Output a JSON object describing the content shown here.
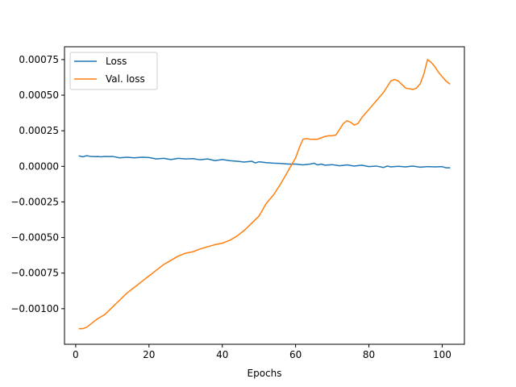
{
  "chart_data": {
    "type": "line",
    "title": "",
    "xlabel": "Epochs",
    "ylabel": "",
    "xlim": [
      -3.05,
      106.05
    ],
    "ylim": [
      -0.00125,
      0.00084
    ],
    "xticks": [
      0,
      20,
      40,
      60,
      80,
      100
    ],
    "xtick_labels": [
      "0",
      "20",
      "40",
      "60",
      "80",
      "100"
    ],
    "yticks": [
      -0.001,
      -0.00075,
      -0.0005,
      -0.00025,
      0,
      0.00025,
      0.0005,
      0.00075
    ],
    "ytick_labels": [
      "−0.00100",
      "−0.00075",
      "−0.00050",
      "−0.00025",
      "0.00000",
      "0.00025",
      "0.00050",
      "0.00075"
    ],
    "grid": false,
    "legend": "top-left",
    "series": [
      {
        "name": "Loss",
        "color": "#1f77b4",
        "x": [
          1,
          2,
          3,
          4,
          5,
          6,
          7,
          8,
          9,
          10,
          12,
          14,
          16,
          18,
          20,
          22,
          24,
          26,
          28,
          30,
          32,
          34,
          36,
          38,
          40,
          42,
          44,
          46,
          48,
          49,
          50,
          52,
          54,
          56,
          58,
          60,
          62,
          64,
          65,
          66,
          67,
          68,
          70,
          72,
          74,
          76,
          78,
          80,
          82,
          84,
          85,
          86,
          88,
          90,
          92,
          94,
          96,
          98,
          100,
          101,
          102
        ],
        "y": [
          7.3e-05,
          6.7e-05,
          7.5e-05,
          7e-05,
          6.8e-05,
          6.9e-05,
          6.7e-05,
          7e-05,
          6.8e-05,
          7e-05,
          6e-05,
          6.4e-05,
          6e-05,
          6.4e-05,
          6.2e-05,
          5.2e-05,
          5.6e-05,
          4.8e-05,
          5.6e-05,
          5.2e-05,
          5.4e-05,
          4.6e-05,
          5.2e-05,
          4e-05,
          4.8e-05,
          4e-05,
          3.6e-05,
          3e-05,
          3.6e-05,
          2.4e-05,
          3.2e-05,
          2.6e-05,
          2.2e-05,
          2e-05,
          1.6e-05,
          1.6e-05,
          1e-05,
          1.6e-05,
          2.2e-05,
          1e-05,
          1.6e-05,
          8e-06,
          1.2e-05,
          4e-06,
          1e-05,
          2e-06,
          8e-06,
          -2e-06,
          2e-06,
          -8e-06,
          2e-06,
          -4e-06,
          0.0,
          -4e-06,
          2e-06,
          -6e-06,
          -2e-06,
          -4e-06,
          -2e-06,
          -1e-05,
          -1e-05
        ]
      },
      {
        "name": "Val. loss",
        "color": "#ff7f0e",
        "x": [
          1,
          2,
          3,
          4,
          6,
          8,
          10,
          12,
          14,
          16,
          18,
          20,
          22,
          24,
          26,
          28,
          30,
          32,
          34,
          36,
          38,
          40,
          42,
          44,
          46,
          48,
          50,
          52,
          54,
          56,
          58,
          60,
          61,
          62,
          63,
          64,
          65,
          66,
          67,
          68,
          69,
          70,
          71,
          72,
          73,
          74,
          75,
          76,
          77,
          78,
          80,
          82,
          84,
          86,
          87,
          88,
          90,
          92,
          93,
          94,
          95,
          96,
          97,
          98,
          99,
          100,
          101,
          102
        ],
        "y": [
          -0.00114,
          -0.00114,
          -0.00113,
          -0.00111,
          -0.00107,
          -0.00104,
          -0.00099,
          -0.00094,
          -0.00089,
          -0.00085,
          -0.00081,
          -0.00077,
          -0.00073,
          -0.00069,
          -0.00066,
          -0.00063,
          -0.00061,
          -0.0006,
          -0.00058,
          -0.000565,
          -0.00055,
          -0.00054,
          -0.00052,
          -0.00049,
          -0.00045,
          -0.0004,
          -0.00035,
          -0.00026,
          -0.0002,
          -0.00012,
          -3e-05,
          6e-05,
          0.00013,
          0.00019,
          0.000195,
          0.00019,
          0.00019,
          0.00019,
          0.0002,
          0.00021,
          0.000215,
          0.000215,
          0.00022,
          0.00026,
          0.0003,
          0.00032,
          0.00031,
          0.00029,
          0.0003,
          0.00034,
          0.0004,
          0.00046,
          0.00052,
          0.0006,
          0.00061,
          0.0006,
          0.00055,
          0.00054,
          0.00055,
          0.00058,
          0.00065,
          0.00075,
          0.00073,
          0.0007,
          0.00066,
          0.00063,
          0.0006,
          0.00058
        ]
      }
    ]
  }
}
